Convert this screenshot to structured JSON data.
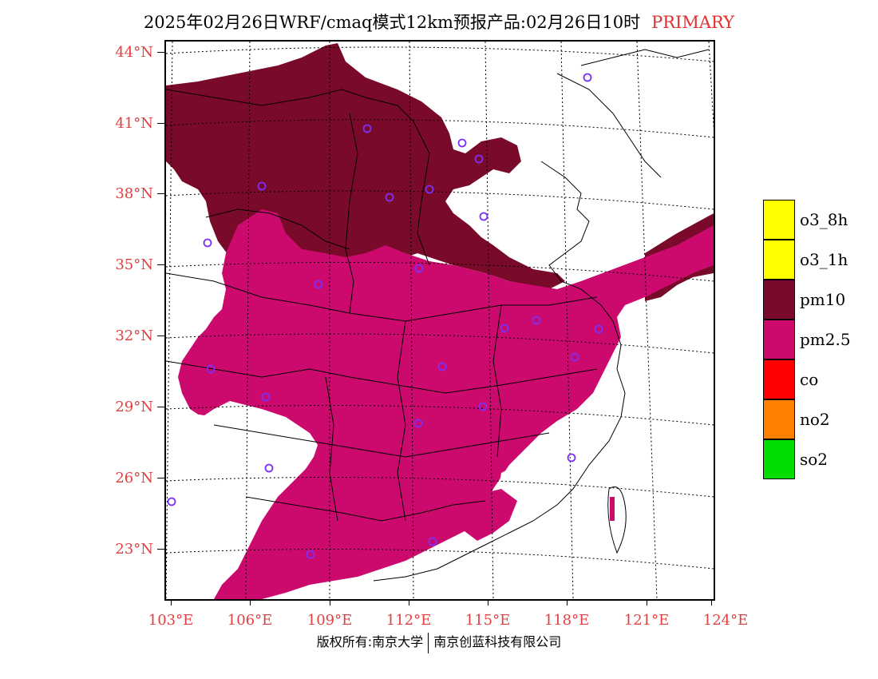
{
  "title": {
    "main": "2025年02月26日WRF/cmaq模式12km预报产品:02月26日10时",
    "tag": "PRIMARY"
  },
  "lat_labels": [
    "44°N",
    "41°N",
    "38°N",
    "35°N",
    "32°N",
    "29°N",
    "26°N",
    "23°N"
  ],
  "lon_labels": [
    "103°E",
    "106°E",
    "109°E",
    "112°E",
    "115°E",
    "118°E",
    "121°E",
    "124°E"
  ],
  "legend": [
    {
      "label": "o3_8h",
      "color": "#ffff00"
    },
    {
      "label": "o3_1h",
      "color": "#ffff00"
    },
    {
      "label": "pm10",
      "color": "#7a0a2a"
    },
    {
      "label": "pm2.5",
      "color": "#cc0a6e"
    },
    {
      "label": "co",
      "color": "#ff0000"
    },
    {
      "label": "no2",
      "color": "#ff8000"
    },
    {
      "label": "so2",
      "color": "#00dd00"
    }
  ],
  "footer": {
    "left": "版权所有:南京大学",
    "right": "南京创蓝科技有限公司"
  },
  "colors": {
    "pm10": "#7a0a2a",
    "pm25": "#cc0a6e",
    "station_marker": "#7b2ff7",
    "axis_label": "#e04040"
  }
}
